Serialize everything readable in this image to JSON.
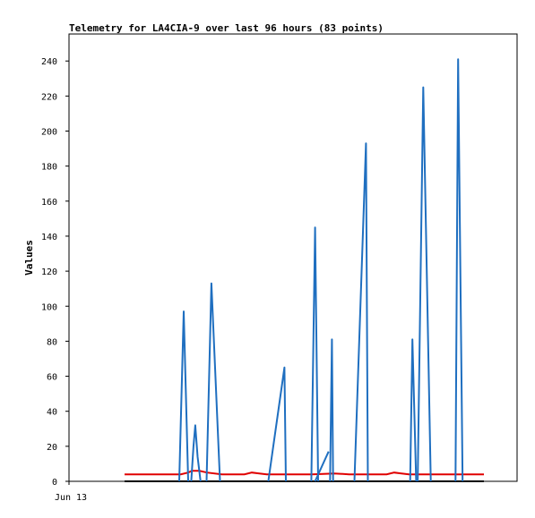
{
  "chart_data": {
    "type": "line",
    "title": "Telemetry for LA4CIA-9 over last 96 hours (83 points)",
    "xlabel": "",
    "ylabel": "Values",
    "x_tick_labels": [
      "Jun 13"
    ],
    "y_ticks": [
      0,
      20,
      40,
      60,
      80,
      100,
      120,
      140,
      160,
      180,
      200,
      220,
      240
    ],
    "ylim": [
      0,
      255
    ],
    "grid": false,
    "legend": "none",
    "x_range_hours": [
      0,
      96
    ],
    "series": [
      {
        "color": "#1f6fc0",
        "segments": [
          [
            [
              14.6,
              0
            ],
            [
              15.8,
              97
            ],
            [
              17.0,
              0
            ]
          ],
          [
            [
              17.8,
              0
            ],
            [
              18.4,
              20
            ],
            [
              18.9,
              32
            ],
            [
              19.5,
              14
            ],
            [
              20.3,
              0
            ]
          ],
          [
            [
              21.9,
              0
            ],
            [
              23.2,
              113
            ],
            [
              25.5,
              0
            ]
          ],
          [
            [
              38.4,
              0
            ],
            [
              42.7,
              65
            ],
            [
              43.1,
              0
            ]
          ],
          [
            [
              49.9,
              0
            ],
            [
              50.9,
              145
            ],
            [
              51.7,
              0
            ]
          ],
          [
            [
              50.9,
              0
            ],
            [
              54.5,
              17
            ]
          ],
          [
            [
              54.9,
              0
            ],
            [
              55.4,
              81
            ],
            [
              55.7,
              0
            ]
          ],
          [
            [
              61.4,
              0
            ],
            [
              64.5,
              193
            ],
            [
              65.0,
              0
            ]
          ],
          [
            [
              76.3,
              0
            ],
            [
              76.9,
              81
            ],
            [
              77.9,
              0
            ]
          ],
          [
            [
              78.3,
              0
            ],
            [
              79.8,
              225
            ],
            [
              81.8,
              0
            ]
          ],
          [
            [
              88.4,
              0
            ],
            [
              89.1,
              241
            ],
            [
              90.3,
              0
            ]
          ]
        ]
      },
      {
        "color": "#e00000",
        "points": [
          [
            0,
            4
          ],
          [
            3,
            4
          ],
          [
            6,
            4
          ],
          [
            9,
            4
          ],
          [
            12,
            4
          ],
          [
            15,
            4
          ],
          [
            17,
            5
          ],
          [
            18,
            6
          ],
          [
            20,
            6
          ],
          [
            22,
            5
          ],
          [
            26,
            4
          ],
          [
            32,
            4
          ],
          [
            34,
            5
          ],
          [
            36,
            4.5
          ],
          [
            38,
            4
          ],
          [
            44,
            4
          ],
          [
            50,
            4
          ],
          [
            56,
            4.5
          ],
          [
            60,
            4
          ],
          [
            70,
            4
          ],
          [
            72,
            5
          ],
          [
            74,
            4.5
          ],
          [
            76,
            4
          ],
          [
            82,
            4
          ],
          [
            90,
            4
          ],
          [
            96,
            4
          ]
        ]
      },
      {
        "color": "#000000",
        "points": [
          [
            0,
            0
          ],
          [
            96,
            0
          ]
        ]
      }
    ]
  }
}
